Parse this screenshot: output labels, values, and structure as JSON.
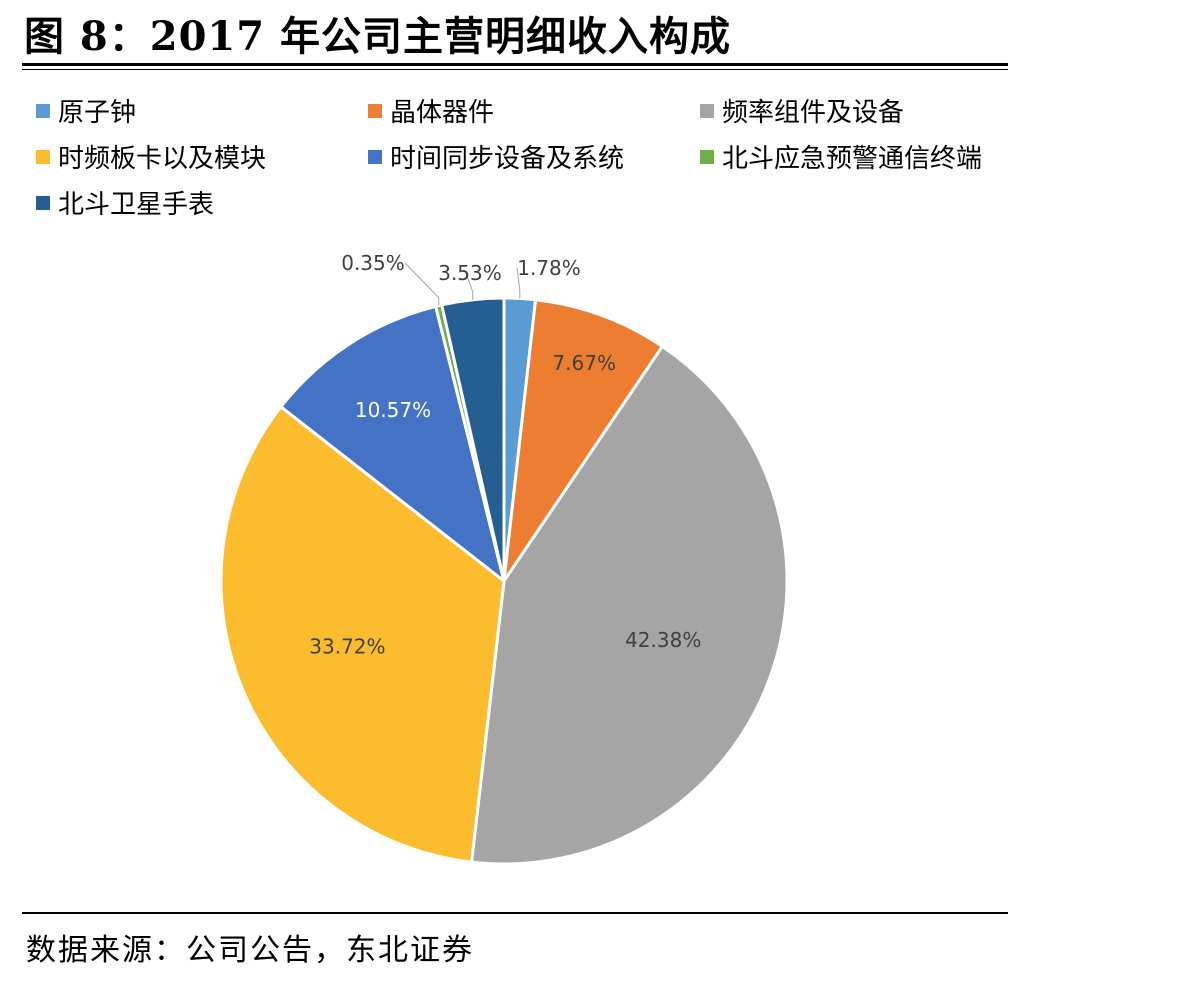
{
  "figure": {
    "title": "图 8：2017 年公司主营明细收入构成",
    "source": "数据来源：公司公告，东北证券"
  },
  "chart_data": {
    "type": "pie",
    "title": "图 8：2017 年公司主营明细收入构成",
    "legend_position": "top",
    "start_angle": "12 o'clock, clockwise",
    "slices": [
      {
        "name": "原子钟",
        "value": 1.78,
        "label": "1.78%",
        "color": "#5b9bd5",
        "label_color": "#404040"
      },
      {
        "name": "晶体器件",
        "value": 7.67,
        "label": "7.67%",
        "color": "#ed7d31",
        "label_color": "#404040"
      },
      {
        "name": "频率组件及设备",
        "value": 42.38,
        "label": "42.38%",
        "color": "#a5a5a5",
        "label_color": "#404040"
      },
      {
        "name": "时频板卡以及模块",
        "value": 33.72,
        "label": "33.72%",
        "color": "#fbbd2e",
        "label_color": "#404040"
      },
      {
        "name": "时间同步设备及系统",
        "value": 10.57,
        "label": "10.57%",
        "color": "#4472c4",
        "label_color": "#ffffff"
      },
      {
        "name": "北斗应急预警通信终端",
        "value": 0.35,
        "label": "0.35%",
        "color": "#70ad47",
        "label_color": "#404040"
      },
      {
        "name": "北斗卫星手表",
        "value": 3.53,
        "label": "3.53%",
        "color": "#255e91",
        "label_color": "#404040"
      }
    ]
  }
}
